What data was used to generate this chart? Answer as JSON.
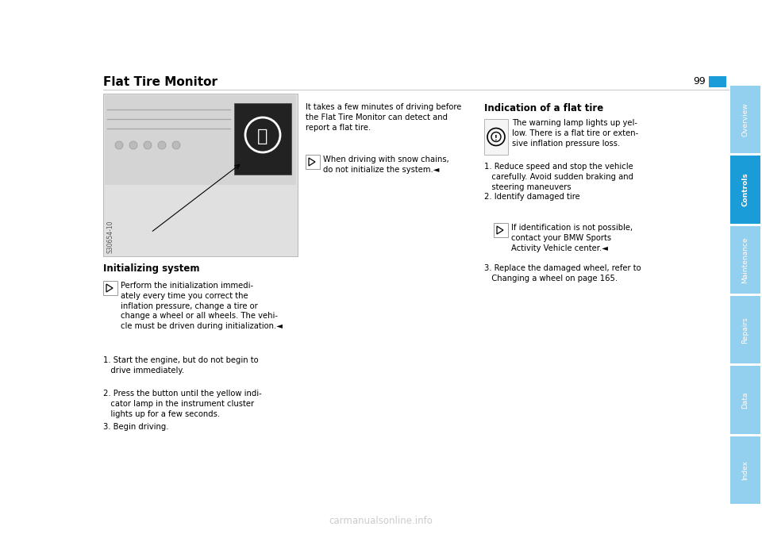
{
  "title": "Flat Tire Monitor",
  "page_number": "99",
  "bg_color": "#ffffff",
  "tab_color": "#1a9cd8",
  "tab_labels": [
    "Overview",
    "Controls",
    "Maintenance",
    "Repairs",
    "Data",
    "Index"
  ],
  "tab_active": "Controls",
  "title_fontsize": 11,
  "body_fontsize": 7.2,
  "heading2_fontsize": 8.5,
  "section_init_heading": "Initializing system",
  "section_init_body": "Perform the initialization immedi-\nately every time you correct the\ninflation pressure, change a tire or\nchange a wheel or all wheels. The vehi-\ncle must be driven during initialization.◄",
  "steps_col1": [
    "1. Start the engine, but do not begin to\n   drive immediately.",
    "2. Press the button until the yellow indi-\n   cator lamp in the instrument cluster\n   lights up for a few seconds.",
    "3. Begin driving."
  ],
  "col2_intro": "It takes a few minutes of driving before\nthe Flat Tire Monitor can detect and\nreport a flat tire.",
  "col2_note": "When driving with snow chains,\ndo not initialize the system.◄",
  "col3_heading": "Indication of a flat tire",
  "col3_warning": "The warning lamp lights up yel-\nlow. There is a flat tire or exten-\nsive inflation pressure loss.",
  "col3_steps": [
    "1. Reduce speed and stop the vehicle\n   carefully. Avoid sudden braking and\n   steering maneuvers",
    "2. Identify damaged tire"
  ],
  "col3_note2": "If identification is not possible,\ncontact your BMW Sports\nActivity Vehicle center.◄",
  "col3_step3": "3. Replace the damaged wheel, refer to\n   Changing a wheel on page 165.",
  "watermark": "carmanualsonline.info",
  "img_code": "S30654-10"
}
